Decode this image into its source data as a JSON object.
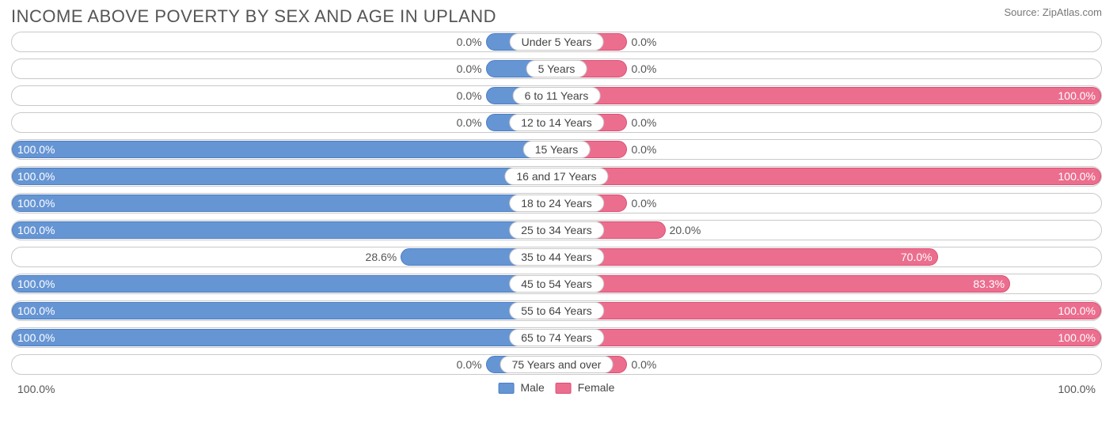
{
  "title": "INCOME ABOVE POVERTY BY SEX AND AGE IN UPLAND",
  "source": "Source: ZipAtlas.com",
  "colors": {
    "male_fill": "#6695d4",
    "male_border": "#4b7ec4",
    "female_fill": "#ec6e8e",
    "female_border": "#db4f74",
    "row_border": "#c9c9c9",
    "text_title": "#555555",
    "text_body": "#444444",
    "background": "#ffffff"
  },
  "chart": {
    "type": "diverging-bar",
    "min_bar_pct": 13,
    "axis": {
      "left_label": "100.0%",
      "right_label": "100.0%"
    },
    "legend": {
      "male": "Male",
      "female": "Female"
    },
    "rows": [
      {
        "label": "Under 5 Years",
        "male": 0.0,
        "male_label": "0.0%",
        "female": 0.0,
        "female_label": "0.0%"
      },
      {
        "label": "5 Years",
        "male": 0.0,
        "male_label": "0.0%",
        "female": 0.0,
        "female_label": "0.0%"
      },
      {
        "label": "6 to 11 Years",
        "male": 0.0,
        "male_label": "0.0%",
        "female": 100.0,
        "female_label": "100.0%"
      },
      {
        "label": "12 to 14 Years",
        "male": 0.0,
        "male_label": "0.0%",
        "female": 0.0,
        "female_label": "0.0%"
      },
      {
        "label": "15 Years",
        "male": 100.0,
        "male_label": "100.0%",
        "female": 0.0,
        "female_label": "0.0%"
      },
      {
        "label": "16 and 17 Years",
        "male": 100.0,
        "male_label": "100.0%",
        "female": 100.0,
        "female_label": "100.0%"
      },
      {
        "label": "18 to 24 Years",
        "male": 100.0,
        "male_label": "100.0%",
        "female": 0.0,
        "female_label": "0.0%"
      },
      {
        "label": "25 to 34 Years",
        "male": 100.0,
        "male_label": "100.0%",
        "female": 20.0,
        "female_label": "20.0%"
      },
      {
        "label": "35 to 44 Years",
        "male": 28.6,
        "male_label": "28.6%",
        "female": 70.0,
        "female_label": "70.0%"
      },
      {
        "label": "45 to 54 Years",
        "male": 100.0,
        "male_label": "100.0%",
        "female": 83.3,
        "female_label": "83.3%"
      },
      {
        "label": "55 to 64 Years",
        "male": 100.0,
        "male_label": "100.0%",
        "female": 100.0,
        "female_label": "100.0%"
      },
      {
        "label": "65 to 74 Years",
        "male": 100.0,
        "male_label": "100.0%",
        "female": 100.0,
        "female_label": "100.0%"
      },
      {
        "label": "75 Years and over",
        "male": 0.0,
        "male_label": "0.0%",
        "female": 0.0,
        "female_label": "0.0%"
      }
    ]
  }
}
